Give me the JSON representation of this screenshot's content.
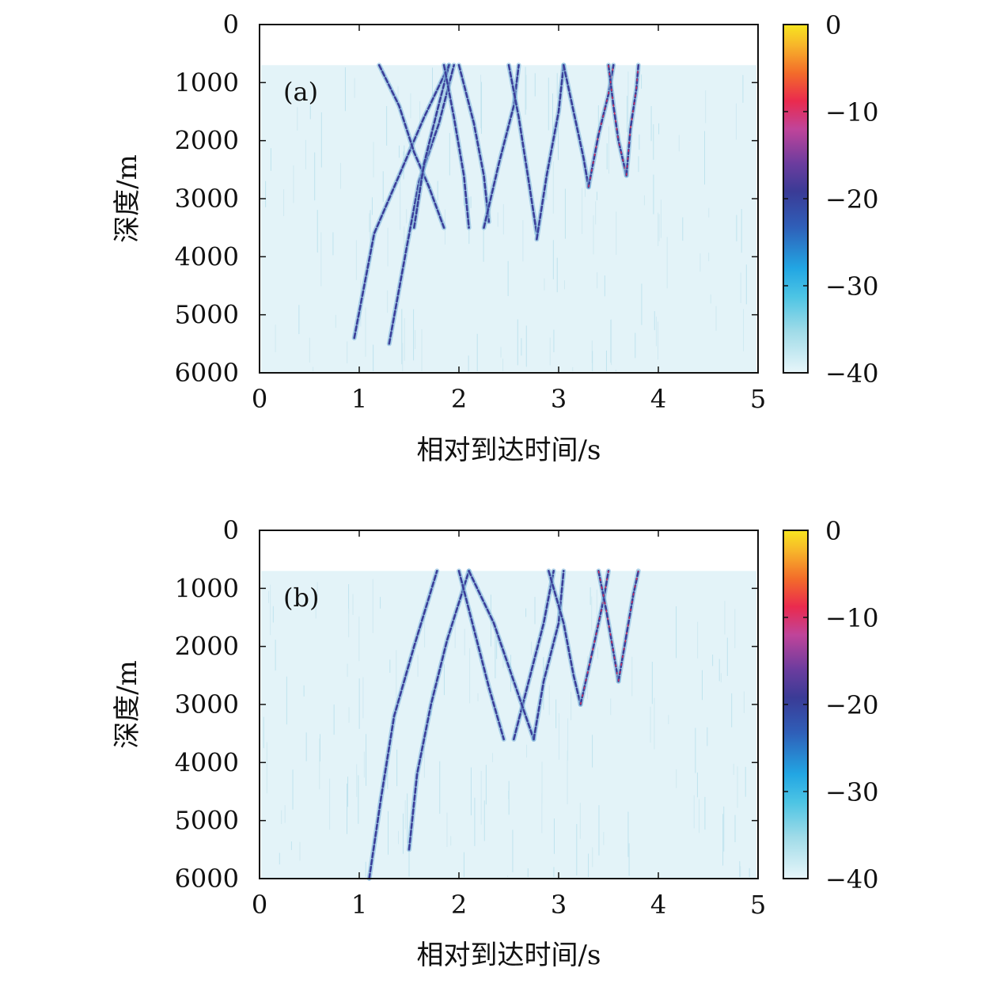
{
  "chart_data": [
    {
      "type": "heatmap",
      "panel_label": "(a)",
      "xlabel": "相对到达时间/s",
      "ylabel": "深度/m",
      "xlim": [
        0,
        5
      ],
      "ylim": [
        0,
        6000
      ],
      "y_inverted": true,
      "x_ticks": [
        "0",
        "1",
        "2",
        "3",
        "4",
        "5"
      ],
      "y_ticks": [
        "0",
        "1000",
        "2000",
        "3000",
        "4000",
        "5000",
        "6000"
      ],
      "data_depth_start": 700,
      "colorbar": {
        "min": -40,
        "max": 0,
        "ticks": [
          "0",
          "−10",
          "−20",
          "−30",
          "−40"
        ],
        "colormap": "parula-like (light cyan → blue → purple → red → yellow)"
      },
      "arrival_traces": [
        {
          "depth": [
            5400,
            3600,
            2600,
            1600,
            700
          ],
          "time": [
            0.95,
            1.15,
            1.4,
            1.65,
            1.9
          ]
        },
        {
          "depth": [
            5500,
            3800,
            2700,
            1700,
            700
          ],
          "time": [
            1.3,
            1.48,
            1.6,
            1.8,
            1.95
          ]
        },
        {
          "depth": [
            700,
            1400,
            2200,
            2800,
            3500
          ],
          "time": [
            1.2,
            1.4,
            1.55,
            1.7,
            1.85
          ]
        },
        {
          "depth": [
            3500,
            2400,
            1500,
            700
          ],
          "time": [
            1.55,
            1.65,
            1.78,
            1.9
          ]
        },
        {
          "depth": [
            700,
            1600,
            2600,
            3500
          ],
          "time": [
            1.85,
            1.95,
            2.05,
            2.1
          ]
        },
        {
          "depth": [
            700,
            1700,
            2600,
            3400
          ],
          "time": [
            2.0,
            2.15,
            2.25,
            2.3
          ]
        },
        {
          "depth": [
            3500,
            2400,
            1400,
            700
          ],
          "time": [
            2.25,
            2.4,
            2.55,
            2.6
          ]
        },
        {
          "depth": [
            700,
            1600,
            2700,
            3600
          ],
          "time": [
            2.5,
            2.6,
            2.7,
            2.78
          ]
        },
        {
          "depth": [
            3700,
            2600,
            1500,
            700
          ],
          "time": [
            2.78,
            2.88,
            3.0,
            3.05
          ]
        },
        {
          "depth": [
            700,
            1500,
            2300,
            2800
          ],
          "time": [
            3.05,
            3.15,
            3.25,
            3.3
          ]
        },
        {
          "depth": [
            2800,
            1900,
            1200,
            700
          ],
          "time": [
            3.3,
            3.4,
            3.5,
            3.55
          ]
        },
        {
          "depth": [
            700,
            1400,
            2000,
            2600
          ],
          "time": [
            3.5,
            3.55,
            3.6,
            3.68
          ]
        },
        {
          "depth": [
            2600,
            1800,
            1100,
            700
          ],
          "time": [
            3.68,
            3.72,
            3.78,
            3.8
          ]
        }
      ]
    },
    {
      "type": "heatmap",
      "panel_label": "(b)",
      "xlabel": "相对到达时间/s",
      "ylabel": "深度/m",
      "xlim": [
        0,
        5
      ],
      "ylim": [
        0,
        6000
      ],
      "y_inverted": true,
      "x_ticks": [
        "0",
        "1",
        "2",
        "3",
        "4",
        "5"
      ],
      "y_ticks": [
        "0",
        "1000",
        "2000",
        "3000",
        "4000",
        "5000",
        "6000"
      ],
      "data_depth_start": 700,
      "colorbar": {
        "min": -40,
        "max": 0,
        "ticks": [
          "0",
          "−10",
          "−20",
          "−30",
          "−40"
        ],
        "colormap": "parula-like (light cyan → blue → purple → red → yellow)"
      },
      "arrival_traces": [
        {
          "depth": [
            6000,
            4600,
            3200,
            2000,
            700
          ],
          "time": [
            1.1,
            1.22,
            1.35,
            1.55,
            1.78
          ]
        },
        {
          "depth": [
            5500,
            4200,
            3000,
            1900,
            700
          ],
          "time": [
            1.5,
            1.58,
            1.72,
            1.88,
            2.1
          ]
        },
        {
          "depth": [
            700,
            1700,
            2700,
            3600
          ],
          "time": [
            2.0,
            2.15,
            2.3,
            2.45
          ]
        },
        {
          "depth": [
            3600,
            2600,
            1600,
            700
          ],
          "time": [
            2.55,
            2.7,
            2.85,
            2.95
          ]
        },
        {
          "depth": [
            700,
            1600,
            2600,
            3600
          ],
          "time": [
            2.1,
            2.35,
            2.55,
            2.75
          ]
        },
        {
          "depth": [
            3600,
            2600,
            1600,
            700
          ],
          "time": [
            2.75,
            2.85,
            3.0,
            3.05
          ]
        },
        {
          "depth": [
            700,
            1600,
            2500,
            3000
          ],
          "time": [
            2.9,
            3.05,
            3.15,
            3.22
          ]
        },
        {
          "depth": [
            3000,
            2000,
            1200,
            700
          ],
          "time": [
            3.22,
            3.35,
            3.45,
            3.5
          ]
        },
        {
          "depth": [
            700,
            1400,
            2100,
            2600
          ],
          "time": [
            3.4,
            3.48,
            3.55,
            3.6
          ]
        },
        {
          "depth": [
            2600,
            1800,
            1100,
            700
          ],
          "time": [
            3.6,
            3.68,
            3.75,
            3.8
          ]
        }
      ]
    }
  ]
}
